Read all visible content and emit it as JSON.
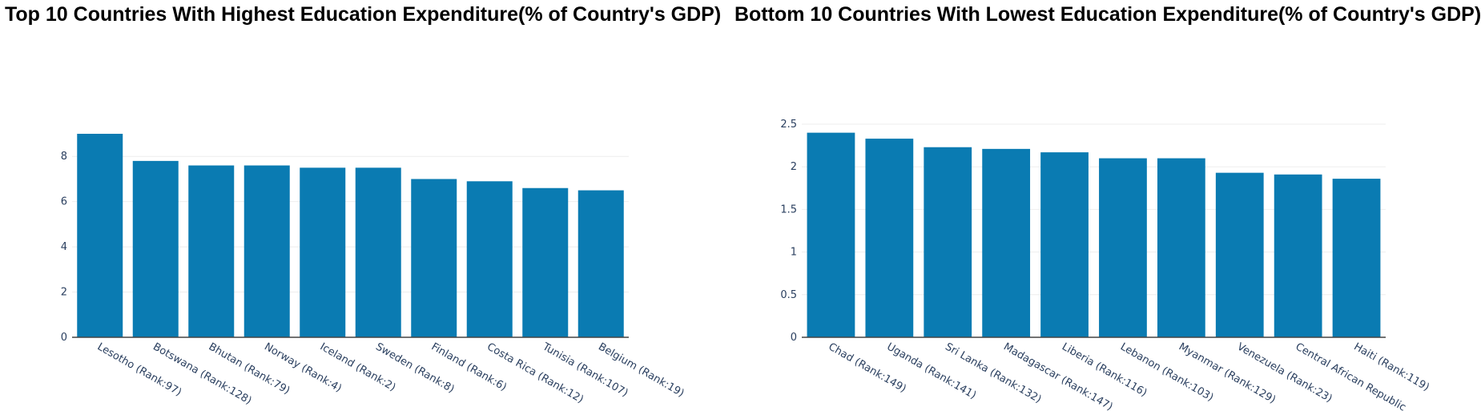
{
  "colors": {
    "bar": "#0a7bb2",
    "grid": "#eeeeee",
    "axis": "#444444",
    "tick_text": "#2a3f5f"
  },
  "chart_data": [
    {
      "type": "bar",
      "title": "Top 10 Countries With Highest Education Expenditure(% of Country's GDP)",
      "xlabel": "",
      "ylabel": "",
      "categories": [
        "Lesotho (Rank:97)",
        "Botswana (Rank:128)",
        "Bhutan (Rank:79)",
        "Norway (Rank:4)",
        "Iceland (Rank:2)",
        "Sweden (Rank:8)",
        "Finland (Rank:6)",
        "Costa Rica (Rank:12)",
        "Tunisia (Rank:107)",
        "Belgium (Rank:19)"
      ],
      "values": [
        9.0,
        7.8,
        7.6,
        7.6,
        7.5,
        7.5,
        7.0,
        6.9,
        6.6,
        6.5
      ],
      "ylim": [
        0,
        9.0
      ],
      "yticks": [
        0,
        2,
        4,
        6,
        8
      ],
      "ytick_labels": [
        "0",
        "2",
        "4",
        "6",
        "8"
      ],
      "grid": true,
      "legend": "none"
    },
    {
      "type": "bar",
      "title": "Bottom 10 Countries With Lowest Education Expenditure(% of Country's GDP)",
      "xlabel": "",
      "ylabel": "",
      "categories": [
        "Chad (Rank:149)",
        "Uganda (Rank:141)",
        "Sri Lanka (Rank:132)",
        "Madagascar (Rank:147)",
        "Liberia (Rank:116)",
        "Lebanon (Rank:103)",
        "Myanmar (Rank:129)",
        "Venezuela (Rank:23)",
        "Central African Republic",
        "Haiti (Rank:119)"
      ],
      "values": [
        2.4,
        2.33,
        2.23,
        2.21,
        2.17,
        2.1,
        2.1,
        1.93,
        1.91,
        1.86
      ],
      "ylim": [
        0,
        2.5
      ],
      "yticks": [
        0,
        0.5,
        1,
        1.5,
        2,
        2.5
      ],
      "ytick_labels": [
        "0",
        "0.5",
        "1",
        "1.5",
        "2",
        "2.5"
      ],
      "grid": true,
      "legend": "none"
    }
  ]
}
